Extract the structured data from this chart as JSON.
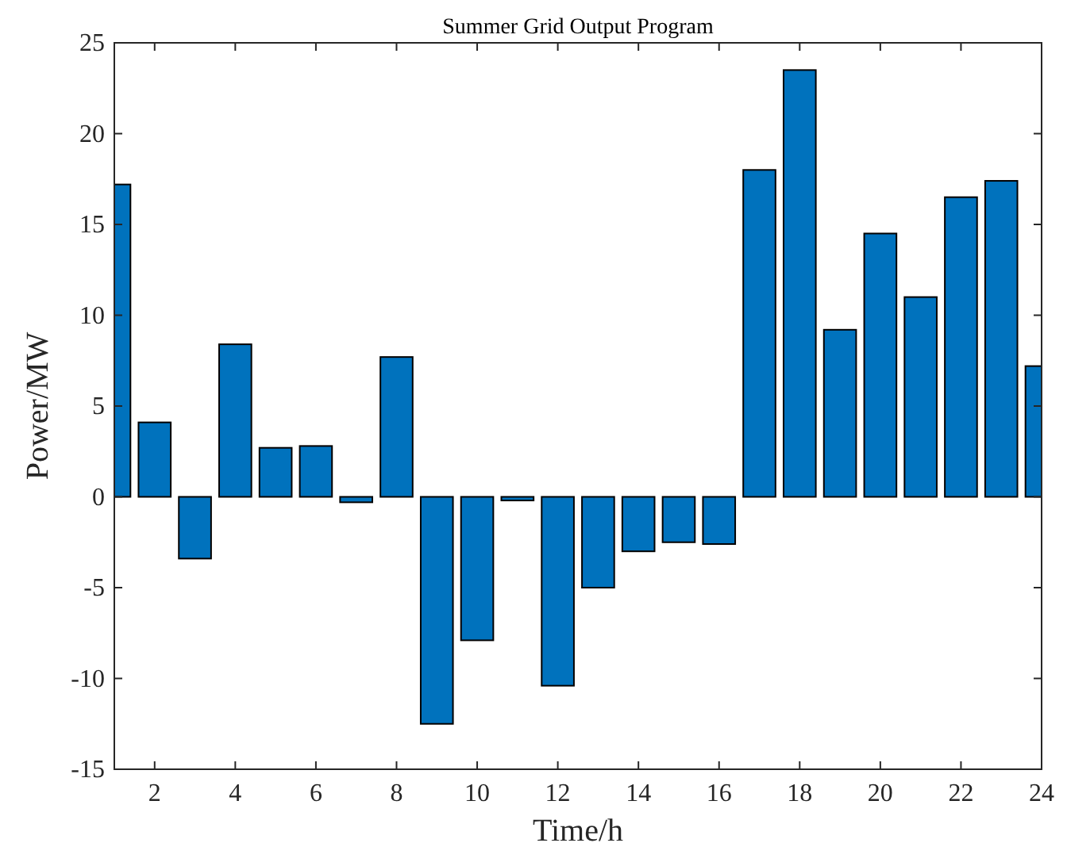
{
  "chart_data": {
    "type": "bar",
    "title": "Summer Grid Output Program",
    "xlabel": "Time/h",
    "ylabel": "Power/MW",
    "x": [
      1,
      2,
      3,
      4,
      5,
      6,
      7,
      8,
      9,
      10,
      11,
      12,
      13,
      14,
      15,
      16,
      17,
      18,
      19,
      20,
      21,
      22,
      23,
      24
    ],
    "values": [
      17.2,
      4.1,
      -3.4,
      8.4,
      2.7,
      2.8,
      -0.3,
      7.7,
      -12.5,
      -7.9,
      -0.2,
      -10.4,
      -5.0,
      -3.0,
      -2.5,
      -2.6,
      18.0,
      23.5,
      9.2,
      14.5,
      11.0,
      16.5,
      17.4,
      7.2
    ],
    "color": "#0072bd",
    "xlim": [
      1,
      24
    ],
    "xticks": [
      2,
      4,
      6,
      8,
      10,
      12,
      14,
      16,
      18,
      20,
      22,
      24
    ],
    "ylim": [
      -15,
      25
    ],
    "yticks": [
      -15,
      -10,
      -5,
      0,
      5,
      10,
      15,
      20,
      25
    ],
    "grid": false
  }
}
